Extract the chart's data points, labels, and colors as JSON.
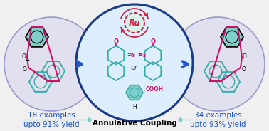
{
  "bg_color": "#f0f0f0",
  "title": "Annulative Coupling",
  "left_text1": "18 examples",
  "left_text2": "upto 91% yield",
  "right_text1": "34 examples",
  "right_text2": "upto 93% yield",
  "ru_text": "Ru",
  "or_text": "or",
  "cooh_text": "COOH",
  "h_text": "H",
  "teal_fill": "#7ececa",
  "teal_stroke": "#3aacac",
  "blue_dark": "#1a3a8a",
  "blue_arrow": "#2255cc",
  "ru_color": "#cc2244",
  "magenta": "#cc1166",
  "text_blue": "#1a50cc",
  "outer_circle_fill": "#e0e0ee",
  "outer_circle_edge": "#9999cc",
  "inner_circle_fill": "#ddeeff",
  "inner_circle_edge": "#1a3a8a",
  "line_teal": "#7ececa"
}
